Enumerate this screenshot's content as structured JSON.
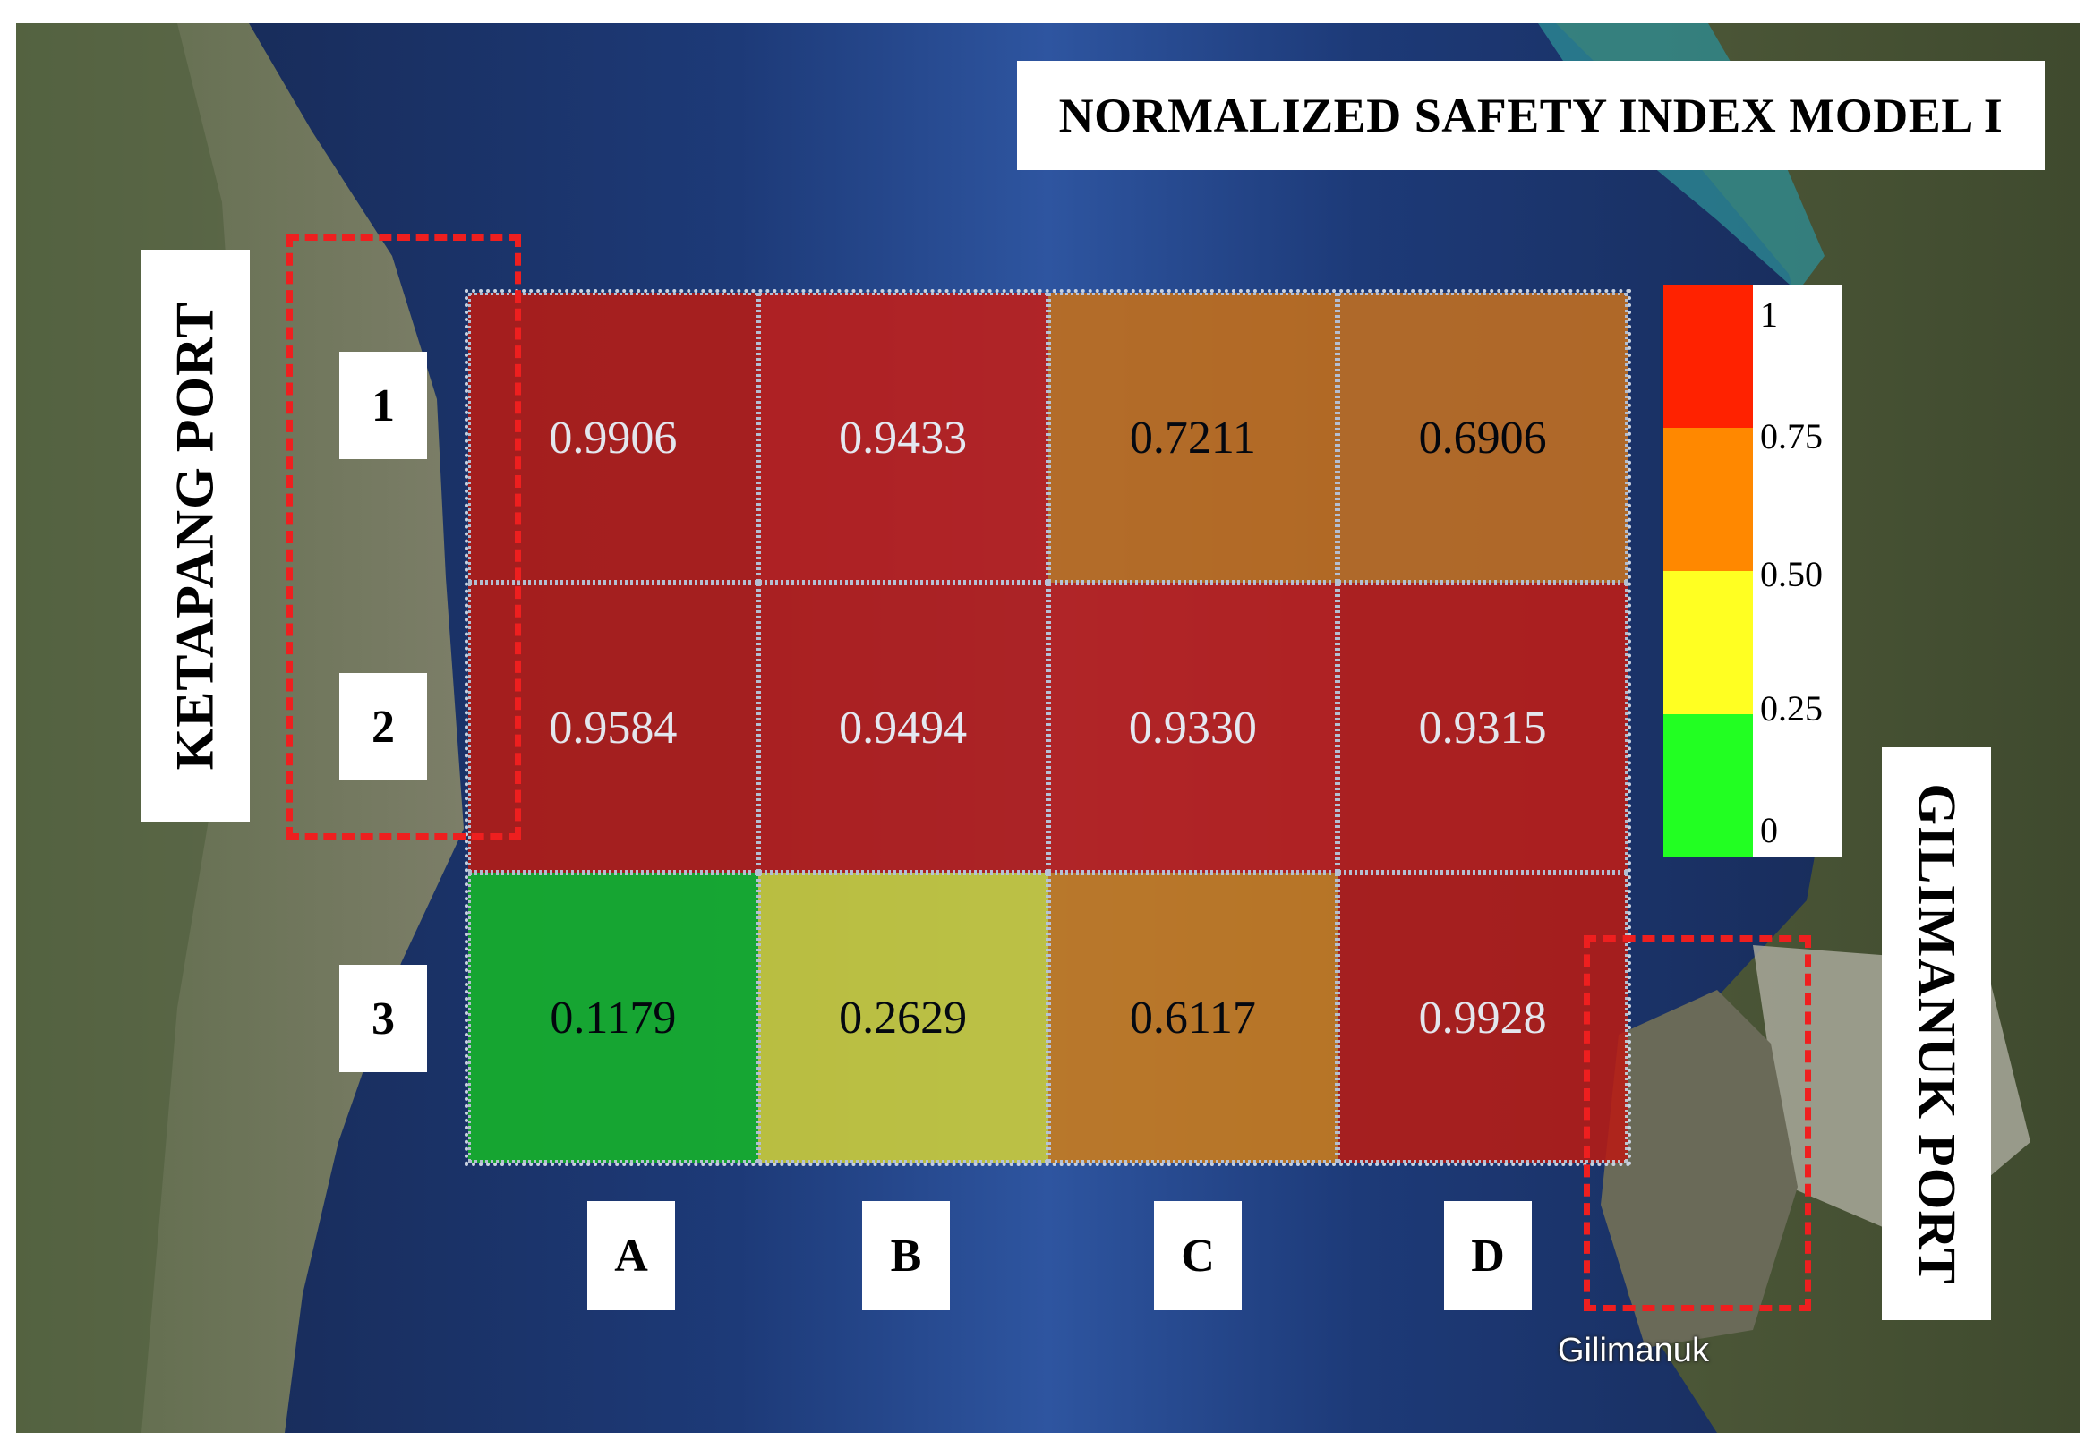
{
  "title": "NORMALIZED SAFETY INDEX MODEL I",
  "ports": {
    "left": "KETAPANG PORT",
    "right": "GILIMANUK PORT"
  },
  "place_label": "Gilimanuk",
  "rows": [
    "1",
    "2",
    "3"
  ],
  "columns": [
    "A",
    "B",
    "C",
    "D"
  ],
  "grid_values": [
    [
      "0.9906",
      "0.9433",
      "0.7211",
      "0.6906"
    ],
    [
      "0.9584",
      "0.9494",
      "0.9330",
      "0.9315"
    ],
    [
      "0.1179",
      "0.2629",
      "0.6117",
      "0.9928"
    ]
  ],
  "cell_colors": [
    [
      "#b81c14",
      "#c21e18",
      "#c6701a",
      "#c47020"
    ],
    [
      "#b71c14",
      "#bd1d16",
      "#c31f18",
      "#be1d16"
    ],
    [
      "#16b52a",
      "#cfd03a",
      "#cc7d1c",
      "#b81c14"
    ]
  ],
  "cell_text_colors": [
    [
      "#ffffff",
      "#ffffff",
      "#000000",
      "#000000"
    ],
    [
      "#ffffff",
      "#ffffff",
      "#ffffff",
      "#ffffff"
    ],
    [
      "#000000",
      "#000000",
      "#000000",
      "#ffffff"
    ]
  ],
  "legend": {
    "ticks": [
      "1",
      "0.75",
      "0.50",
      "0.25",
      "0"
    ],
    "colors": [
      "#ff2200",
      "#ff8800",
      "#ffff22",
      "#22ff22"
    ]
  },
  "marker_color": "#ee1f1f"
}
